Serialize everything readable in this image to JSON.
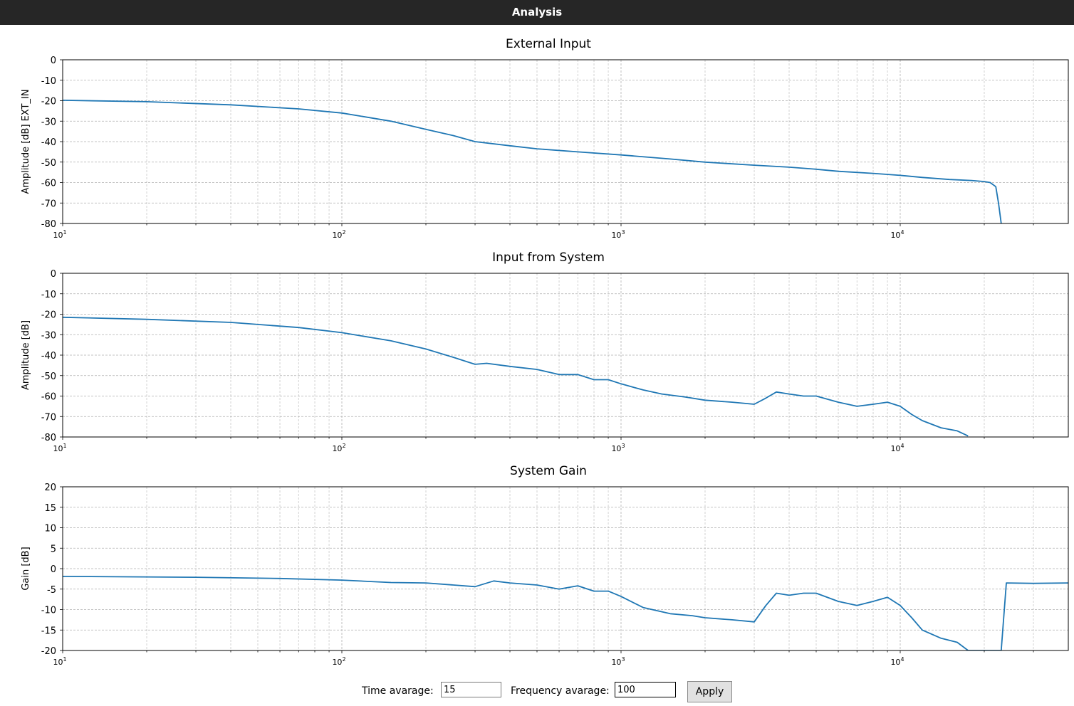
{
  "window": {
    "title": "Analysis"
  },
  "colors": {
    "line": "#1f77b4",
    "titlebar": "#262626"
  },
  "controls": {
    "time_label": "Time avarage:",
    "time_value": "15",
    "freq_label": "Frequency avarage:",
    "freq_value": "100",
    "apply_label": "Apply"
  },
  "chart_data": [
    {
      "type": "line",
      "title": "External Input",
      "ylabel": "Amplitude [dB] EXT_IN",
      "xlabel": "",
      "xscale": "log",
      "xlim": [
        10,
        40000
      ],
      "ylim": [
        -80,
        0
      ],
      "yticks": [
        0,
        -10,
        -20,
        -30,
        -40,
        -50,
        -60,
        -70,
        -80
      ],
      "xticks": [
        "10^1",
        "10^2",
        "10^3",
        "10^4"
      ],
      "grid": true,
      "x": [
        10,
        20,
        40,
        70,
        100,
        150,
        200,
        250,
        300,
        400,
        500,
        700,
        1000,
        1500,
        2000,
        3000,
        4000,
        5000,
        6000,
        8000,
        10000,
        12000,
        15000,
        18000,
        20000,
        21000,
        22000,
        22500,
        23000
      ],
      "y": [
        -19.8,
        -20.5,
        -22,
        -24,
        -26,
        -30,
        -34,
        -37,
        -40,
        -42,
        -43.5,
        -45,
        -46.5,
        -48.5,
        -50,
        -51.5,
        -52.5,
        -53.5,
        -54.5,
        -55.5,
        -56.5,
        -57.5,
        -58.5,
        -59,
        -59.5,
        -60,
        -62,
        -70,
        -80
      ]
    },
    {
      "type": "line",
      "title": "Input from System",
      "ylabel": "Amplitude [dB]",
      "xlabel": "",
      "xscale": "log",
      "xlim": [
        10,
        40000
      ],
      "ylim": [
        -80,
        0
      ],
      "yticks": [
        0,
        -10,
        -20,
        -30,
        -40,
        -50,
        -60,
        -70,
        -80
      ],
      "xticks": [
        "10^1",
        "10^2",
        "10^3",
        "10^4"
      ],
      "grid": true,
      "x": [
        10,
        20,
        40,
        70,
        100,
        150,
        200,
        250,
        300,
        330,
        400,
        500,
        600,
        700,
        800,
        900,
        1000,
        1200,
        1400,
        1700,
        2000,
        2500,
        3000,
        3300,
        3600,
        4000,
        4500,
        5000,
        6000,
        7000,
        8000,
        9000,
        10000,
        11000,
        12000,
        14000,
        16000,
        17500
      ],
      "y": [
        -21.5,
        -22.5,
        -24,
        -26.5,
        -29,
        -33,
        -37,
        -41,
        -44.5,
        -44,
        -45.5,
        -47,
        -49.5,
        -49.5,
        -52,
        -52,
        -54,
        -57,
        -59,
        -60.5,
        -62,
        -63,
        -64,
        -61,
        -58,
        -59,
        -60,
        -60,
        -63,
        -65,
        -64,
        -63,
        -65,
        -69,
        -72,
        -75.5,
        -77,
        -79.5
      ]
    },
    {
      "type": "line",
      "title": "System Gain",
      "ylabel": "Gain [dB]",
      "xlabel": "",
      "xscale": "log",
      "xlim": [
        10,
        40000
      ],
      "ylim": [
        -20,
        20
      ],
      "yticks": [
        20,
        15,
        10,
        5,
        0,
        -5,
        -10,
        -15,
        -20
      ],
      "xticks": [
        "10^1",
        "10^2",
        "10^3",
        "10^4"
      ],
      "grid": true,
      "x": [
        10,
        30,
        60,
        100,
        150,
        200,
        300,
        350,
        400,
        500,
        600,
        700,
        800,
        900,
        1000,
        1200,
        1500,
        1800,
        2000,
        2500,
        3000,
        3300,
        3600,
        4000,
        4500,
        5000,
        6000,
        7000,
        8000,
        9000,
        10000,
        11000,
        12000,
        14000,
        16000,
        17500,
        23000,
        24000,
        30000,
        40000
      ],
      "y": [
        -1.9,
        -2.1,
        -2.4,
        -2.8,
        -3.4,
        -3.5,
        -4.4,
        -3.0,
        -3.5,
        -4.0,
        -5.0,
        -4.2,
        -5.5,
        -5.5,
        -6.8,
        -9.5,
        -11,
        -11.5,
        -12,
        -12.5,
        -13,
        -9,
        -6,
        -6.5,
        -6,
        -6,
        -8,
        -9,
        -8,
        -7,
        -9,
        -12,
        -15,
        -17,
        -18,
        -20,
        -20,
        -3.5,
        -3.6,
        -3.5
      ]
    }
  ]
}
